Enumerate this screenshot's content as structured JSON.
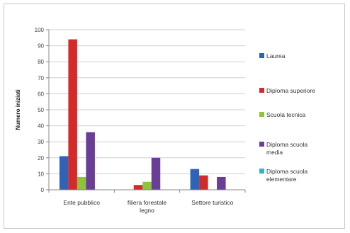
{
  "chart_data": {
    "type": "bar",
    "title": "",
    "xlabel": "",
    "ylabel": "Numero iniziati",
    "ylim": [
      0,
      100
    ],
    "yticks": [
      0,
      10,
      20,
      30,
      40,
      50,
      60,
      70,
      80,
      90,
      100
    ],
    "grid": true,
    "legend_position": "right",
    "categories": [
      [
        "Ente pubblico"
      ],
      [
        "filiera forestale",
        "legno"
      ],
      [
        "Settore turistico"
      ]
    ],
    "series": [
      {
        "name": "Laurea",
        "color": "#2e63b8",
        "values": [
          21,
          0,
          13
        ]
      },
      {
        "name": "Diploma superiore",
        "color": "#d42a2a",
        "values": [
          94,
          3,
          9
        ]
      },
      {
        "name": "Scuola tecnica",
        "color": "#8cc43c",
        "values": [
          8,
          5,
          0
        ]
      },
      {
        "name": [
          "Diploma scuola",
          "media"
        ],
        "color": "#6a3d96",
        "values": [
          36,
          20,
          8
        ]
      },
      {
        "name": [
          "Diploma scuola",
          "elementare"
        ],
        "color": "#32b4c8",
        "values": [
          0,
          0,
          0
        ]
      }
    ]
  }
}
